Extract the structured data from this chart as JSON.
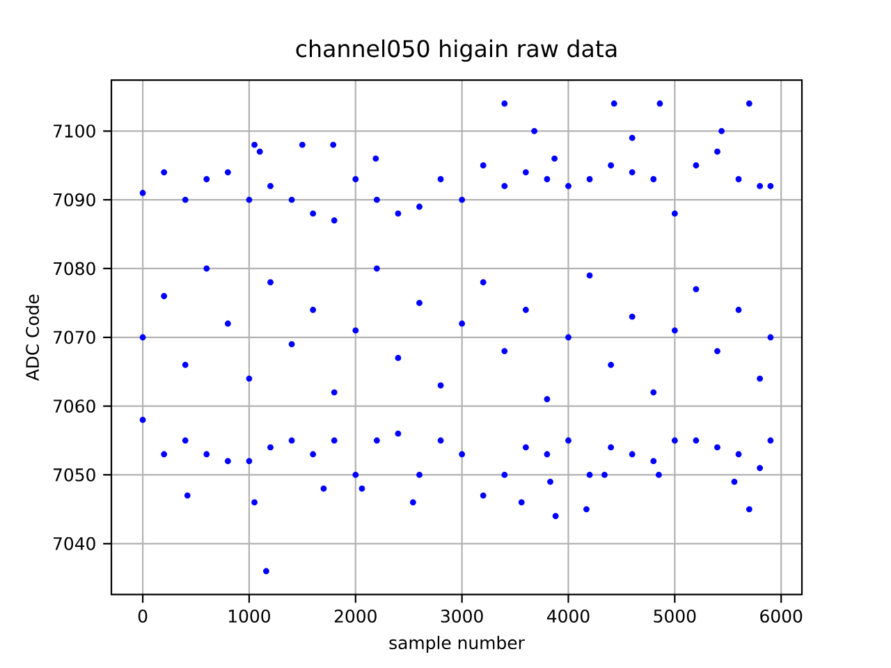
{
  "chart_data": {
    "type": "scatter",
    "title": "channel050 higain raw data",
    "xlabel": "sample number",
    "ylabel": "ADC Code",
    "x": [
      1050,
      1100,
      1500,
      1790,
      2190,
      3400,
      3680,
      3870,
      4430,
      4600,
      4860,
      5440,
      5700,
      420,
      1050,
      1160,
      1700,
      2060,
      2540,
      3560,
      3830,
      3880,
      4170,
      4340,
      4850,
      5560,
      5700,
      0,
      0,
      0,
      200,
      200,
      200,
      400,
      400,
      400,
      600,
      600,
      600,
      800,
      800,
      800,
      1000,
      1000,
      1000,
      1200,
      1200,
      1200,
      1400,
      1400,
      1400,
      1600,
      1600,
      1600,
      1800,
      1800,
      1800,
      2000,
      2000,
      2000,
      2200,
      2200,
      2200,
      2400,
      2400,
      2400,
      2600,
      2600,
      2600,
      2800,
      2800,
      2800,
      3000,
      3000,
      3000,
      3200,
      3200,
      3200,
      3400,
      3400,
      3400,
      3600,
      3600,
      3600,
      3800,
      3800,
      3800,
      4000,
      4000,
      4000,
      4200,
      4200,
      4200,
      4400,
      4400,
      4400,
      4600,
      4600,
      4600,
      4800,
      4800,
      4800,
      5000,
      5000,
      5000,
      5200,
      5200,
      5200,
      5400,
      5400,
      5400,
      5600,
      5600,
      5600,
      5800,
      5800,
      5800,
      5900,
      5900,
      5900
    ],
    "values": [
      7098,
      7097,
      7098,
      7098,
      7096,
      7104,
      7100,
      7096,
      7104,
      7099,
      7104,
      7100,
      7104,
      7047,
      7046,
      7036,
      7048,
      7048,
      7046,
      7046,
      7049,
      7044,
      7045,
      7050,
      7050,
      7049,
      7045,
      7091,
      7058,
      7070,
      7094,
      7053,
      7076,
      7090,
      7055,
      7066,
      7093,
      7053,
      7080,
      7094,
      7052,
      7072,
      7090,
      7052,
      7064,
      7092,
      7054,
      7078,
      7090,
      7055,
      7069,
      7088,
      7053,
      7074,
      7087,
      7055,
      7062,
      7093,
      7050,
      7071,
      7090,
      7055,
      7080,
      7088,
      7056,
      7067,
      7089,
      7050,
      7075,
      7093,
      7055,
      7063,
      7090,
      7053,
      7072,
      7095,
      7047,
      7078,
      7092,
      7050,
      7068,
      7094,
      7054,
      7074,
      7093,
      7053,
      7061,
      7092,
      7055,
      7070,
      7093,
      7050,
      7079,
      7095,
      7054,
      7066,
      7094,
      7053,
      7073,
      7093,
      7052,
      7062,
      7088,
      7055,
      7071,
      7095,
      7055,
      7077,
      7097,
      7054,
      7068,
      7093,
      7053,
      7074,
      7092,
      7051,
      7064,
      7092,
      7055,
      7070
    ],
    "color": "#0000ff",
    "marker": "circle",
    "grid": true,
    "xlim": [
      -295,
      6195
    ],
    "ylim": [
      7032.6,
      7107.4
    ],
    "xticks": [
      0,
      1000,
      2000,
      3000,
      4000,
      5000,
      6000
    ],
    "yticks": [
      7040,
      7050,
      7060,
      7070,
      7080,
      7090,
      7100
    ]
  }
}
